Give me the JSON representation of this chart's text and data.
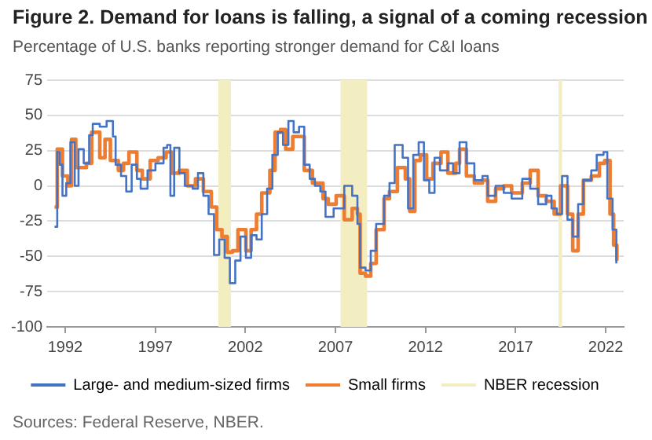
{
  "chart_data": {
    "type": "step",
    "title": "Figure 2. Demand for loans is falling, a signal of a coming recession",
    "subtitle": "Percentage of U.S. banks reporting stronger demand for C&I loans",
    "annotations": [
      "Sources: Federal Reserve, NBER."
    ],
    "xlim": [
      1991,
      2023
    ],
    "xticks": [
      1992,
      1997,
      2002,
      2007,
      2012,
      2017,
      2022
    ],
    "ylim": [
      -100,
      75
    ],
    "yticks": [
      -100,
      -75,
      -50,
      -25,
      0,
      25,
      50,
      75
    ],
    "grid": "y",
    "legend": "bottom",
    "bands": [
      {
        "axis": "x",
        "from": 2000.5,
        "to": 2001.2,
        "label": "NBER recession",
        "color": "#f3edc2"
      },
      {
        "axis": "x",
        "from": 2007.28,
        "to": 2008.76,
        "color": "#f3edc2"
      },
      {
        "axis": "x",
        "from": 2019.38,
        "to": 2019.58,
        "color": "#f3edc2"
      }
    ],
    "series": [
      {
        "name": "Large- and medium-sized firms",
        "color": "#4472c4",
        "x": [
          1991.41,
          1991.56,
          1991.7,
          1991.85,
          1992.06,
          1992.29,
          1992.53,
          1992.74,
          1993.03,
          1993.33,
          1993.53,
          1993.92,
          1994.3,
          1994.65,
          1994.8,
          1995.1,
          1995.39,
          1995.69,
          1995.98,
          1996.19,
          1996.57,
          1997.01,
          1997.46,
          1997.66,
          1997.84,
          1998.05,
          1998.34,
          1998.64,
          1999.08,
          1999.37,
          1999.67,
          1999.96,
          2000.26,
          2000.55,
          2000.85,
          2001.14,
          2001.44,
          2001.73,
          2002.03,
          2002.32,
          2002.62,
          2002.91,
          2003.21,
          2003.5,
          2003.8,
          2004.09,
          2004.39,
          2004.68,
          2004.98,
          2005.27,
          2005.57,
          2005.86,
          2006.16,
          2006.45,
          2006.9,
          2007.49,
          2007.93,
          2008.22,
          2008.37,
          2008.67,
          2008.96,
          2009.26,
          2009.7,
          2010,
          2010.29,
          2010.73,
          2011.03,
          2011.32,
          2011.62,
          2011.91,
          2012.21,
          2012.5,
          2012.8,
          2013.24,
          2013.53,
          2013.89,
          2014.27,
          2014.71,
          2015.16,
          2015.45,
          2015.89,
          2016.34,
          2016.78,
          2017.37,
          2017.81,
          2018.25,
          2018.7,
          2018.99,
          2019.29,
          2019.58,
          2019.88,
          2020.17,
          2020.47,
          2020.76,
          2021.2,
          2021.5,
          2021.88,
          2022.09,
          2022.38,
          2022.59
        ],
        "values": [
          -29,
          24,
          15,
          -7,
          2,
          31,
          0,
          26,
          16,
          36,
          44,
          42,
          46,
          35,
          15,
          7,
          -4,
          15,
          5,
          -2,
          11,
          16,
          27,
          29,
          -7,
          27,
          9,
          0,
          -2,
          9,
          -7,
          -20,
          -49,
          -38,
          -51,
          -69,
          -53,
          -36,
          -51,
          -35,
          -38,
          -20,
          -2,
          22,
          38,
          29,
          46,
          38,
          42,
          15,
          5,
          0,
          -4,
          -22,
          -16,
          0,
          -7,
          -27,
          -58,
          -60,
          -46,
          -27,
          -7,
          2,
          29,
          20,
          -16,
          22,
          31,
          4,
          -5,
          20,
          11,
          16,
          9,
          31,
          16,
          4,
          7,
          -7,
          0,
          -5,
          -9,
          5,
          -2,
          -13,
          -7,
          -16,
          -20,
          7,
          -24,
          -36,
          -13,
          4,
          11,
          22,
          24,
          -9,
          -31,
          -55
        ]
      },
      {
        "name": "Small firms",
        "color": "#ed7d31",
        "x": [
          1991.41,
          1991.56,
          1991.85,
          1992.15,
          1992.35,
          1992.59,
          1993.18,
          1993.47,
          1993.71,
          1993.92,
          1994.21,
          1994.51,
          1994.95,
          1995.24,
          1995.54,
          1995.98,
          1996.28,
          1996.72,
          1997.16,
          1997.6,
          1997.9,
          1998.34,
          1998.78,
          1999.23,
          1999.67,
          2000.11,
          2000.41,
          2000.7,
          2001,
          2001.29,
          2001.59,
          2002.03,
          2002.32,
          2002.62,
          2002.91,
          2003.36,
          2003.65,
          2003.95,
          2004.24,
          2004.63,
          2004.98,
          2005.27,
          2005.72,
          2006.31,
          2006.6,
          2007.04,
          2007.49,
          2007.93,
          2008.22,
          2008.37,
          2008.67,
          2008.96,
          2009.26,
          2009.7,
          2010,
          2010.44,
          2010.88,
          2011.12,
          2011.41,
          2011.71,
          2012.06,
          2012.41,
          2012.86,
          2013.24,
          2013.68,
          2013.89,
          2014.27,
          2014.71,
          2015.16,
          2015.45,
          2015.89,
          2016.34,
          2016.78,
          2017.37,
          2017.81,
          2018.25,
          2018.7,
          2019.14,
          2019.49,
          2019.88,
          2020.17,
          2020.47,
          2020.76,
          2021.2,
          2021.65,
          2021.94,
          2022.24,
          2022.44,
          2022.62
        ],
        "values": [
          -15,
          26,
          7,
          0,
          33,
          13,
          16,
          38,
          38,
          20,
          33,
          18,
          11,
          16,
          24,
          11,
          5,
          18,
          20,
          24,
          9,
          11,
          0,
          5,
          -4,
          -15,
          -31,
          -36,
          -47,
          -46,
          -31,
          -46,
          -31,
          -20,
          -5,
          11,
          38,
          40,
          26,
          35,
          35,
          11,
          2,
          -9,
          -13,
          -7,
          -24,
          -16,
          -20,
          -62,
          -64,
          -55,
          -31,
          -9,
          -4,
          13,
          5,
          -18,
          18,
          22,
          5,
          16,
          24,
          9,
          16,
          26,
          7,
          2,
          4,
          -11,
          -2,
          0,
          -5,
          2,
          11,
          -7,
          -11,
          -20,
          0,
          -20,
          -46,
          -20,
          4,
          7,
          16,
          18,
          -20,
          -42,
          -53
        ]
      }
    ]
  }
}
